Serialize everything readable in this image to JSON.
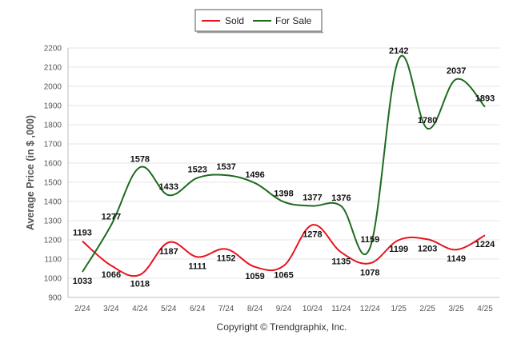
{
  "chart_data": {
    "type": "line",
    "categories": [
      "2/24",
      "3/24",
      "4/24",
      "5/24",
      "6/24",
      "7/24",
      "8/24",
      "9/24",
      "10/24",
      "11/24",
      "12/24",
      "1/25",
      "2/25",
      "3/25",
      "4/25"
    ],
    "series": [
      {
        "name": "Sold",
        "color": "#e8141e",
        "values": [
          1193,
          1066,
          1018,
          1187,
          1111,
          1152,
          1059,
          1065,
          1278,
          1135,
          1078,
          1199,
          1203,
          1149,
          1224
        ]
      },
      {
        "name": "For Sale",
        "color": "#1e6b1e",
        "values": [
          1033,
          1277,
          1578,
          1433,
          1523,
          1537,
          1496,
          1398,
          1377,
          1376,
          1159,
          2142,
          1780,
          2037,
          1893
        ]
      }
    ],
    "ylabel": "Average Price (in $ ,000)",
    "xlabel": "",
    "ylim": [
      900,
      2200
    ],
    "yticks": [
      900,
      1000,
      1100,
      1200,
      1300,
      1400,
      1500,
      1600,
      1700,
      1800,
      1900,
      2000,
      2100,
      2200
    ],
    "grid": true,
    "legend_position": "top-center"
  },
  "credit": "Copyright © Trendgraphix, Inc."
}
